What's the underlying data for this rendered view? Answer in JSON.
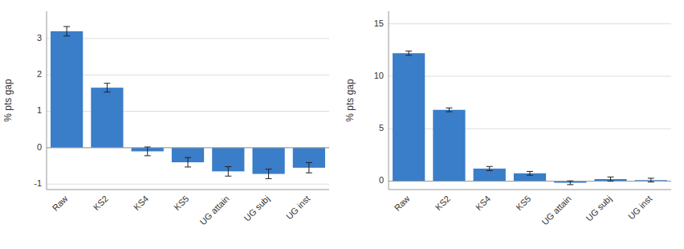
{
  "chart_data": [
    {
      "type": "bar",
      "categories": [
        "Raw",
        "KS2",
        "KS4",
        "KS5",
        "UG attain",
        "UG subj",
        "UG inst"
      ],
      "values": [
        3.2,
        1.65,
        -0.1,
        -0.4,
        -0.65,
        -0.72,
        -0.55
      ],
      "errors": [
        0.13,
        0.12,
        0.12,
        0.13,
        0.13,
        0.13,
        0.14
      ],
      "ylabel": "% pts gap",
      "ylim": [
        -1.15,
        3.75
      ],
      "yticks": [
        -1,
        0,
        1,
        2,
        3
      ],
      "color": "#3a7dc9",
      "grid": true
    },
    {
      "type": "bar",
      "categories": [
        "Raw",
        "KS2",
        "KS4",
        "KS5",
        "UG attain",
        "UG subj",
        "UG inst"
      ],
      "values": [
        12.2,
        6.8,
        1.2,
        0.75,
        -0.15,
        0.2,
        0.1
      ],
      "errors": [
        0.2,
        0.18,
        0.2,
        0.18,
        0.18,
        0.2,
        0.18
      ],
      "ylabel": "% pts gap",
      "ylim": [
        -0.8,
        16.2
      ],
      "yticks": [
        0,
        5,
        10,
        15
      ],
      "color": "#3a7dc9",
      "grid": true
    }
  ]
}
